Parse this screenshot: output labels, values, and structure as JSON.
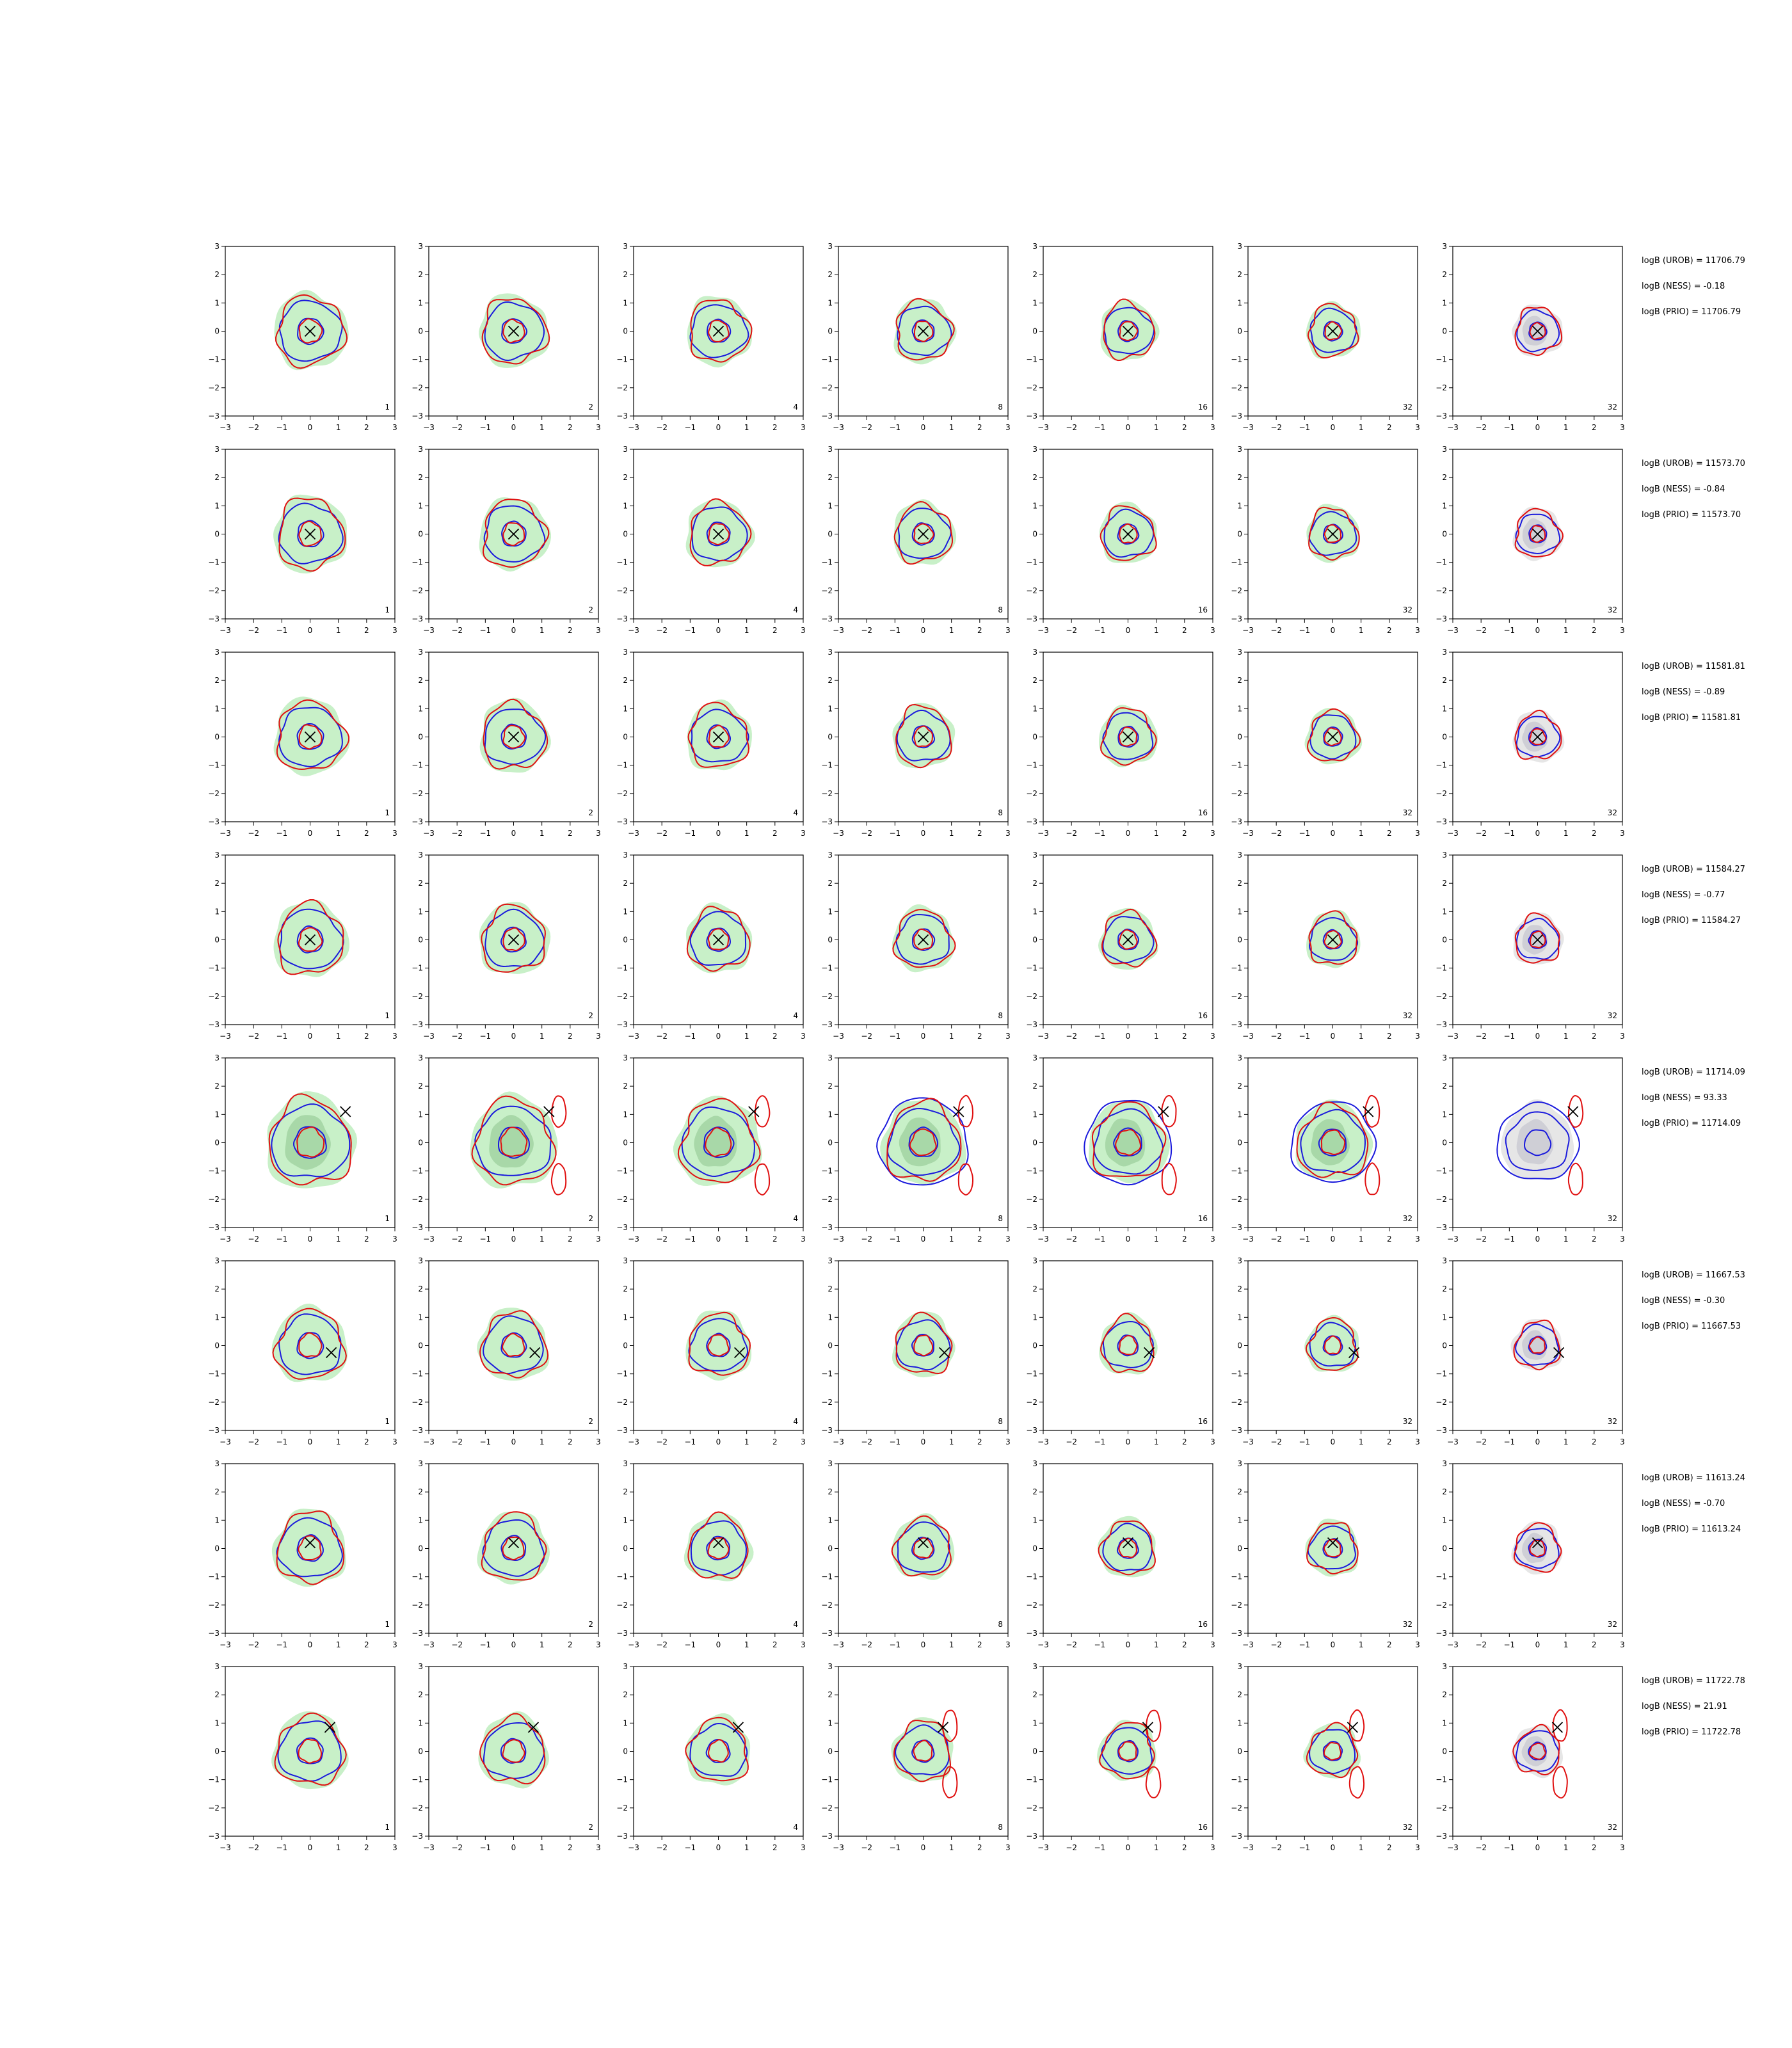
{
  "chart_data": {
    "type": "contour-grid",
    "rows": 8,
    "columns": 7,
    "xlim": [
      -3,
      3
    ],
    "ylim": [
      -3,
      3
    ],
    "xticks": [
      -3,
      -2,
      -1,
      0,
      1,
      2,
      3
    ],
    "yticks": [
      -3,
      -2,
      -1,
      0,
      1,
      2,
      3
    ],
    "column_labels": [
      "1",
      "2",
      "4",
      "8",
      "16",
      "32",
      "32"
    ],
    "colors": {
      "fill": "#c8f0c8",
      "fill_inner": "#a8d8a8",
      "last_fill": "#e6e6e6",
      "last_fill_inner": "#cfcfd6",
      "blue": "#1a1adc",
      "red": "#e01010",
      "marker": "#000000"
    },
    "rows_data": [
      {
        "marker": [
          0.0,
          0.0
        ],
        "stats": [
          "logB (UROB) = 11706.79",
          "logB (NESS) = -0.18",
          "logB (PRIO) = 11706.79"
        ]
      },
      {
        "marker": [
          0.0,
          0.0
        ],
        "stats": [
          "logB (UROB) = 11573.70",
          "logB (NESS) = -0.84",
          "logB (PRIO) = 11573.70"
        ]
      },
      {
        "marker": [
          0.0,
          0.0
        ],
        "stats": [
          "logB (UROB) = 11581.81",
          "logB (NESS) = -0.89",
          "logB (PRIO) = 11581.81"
        ]
      },
      {
        "marker": [
          0.0,
          0.0
        ],
        "stats": [
          "logB (UROB) = 11584.27",
          "logB (NESS) = -0.77",
          "logB (PRIO) = 11584.27"
        ]
      },
      {
        "marker": [
          1.25,
          1.1
        ],
        "stats": [
          "logB (UROB) = 11714.09",
          "logB (NESS) = 93.33",
          "logB (PRIO) = 11714.09"
        ]
      },
      {
        "marker": [
          0.75,
          -0.25
        ],
        "stats": [
          "logB (UROB) = 11667.53",
          "logB (NESS) = -0.30",
          "logB (PRIO) = 11667.53"
        ]
      },
      {
        "marker": [
          0.0,
          0.2
        ],
        "stats": [
          "logB (UROB) = 11613.24",
          "logB (NESS) = -0.70",
          "logB (PRIO) = 11613.24"
        ]
      },
      {
        "marker": [
          0.7,
          0.85
        ],
        "stats": [
          "logB (UROB) = 11722.78",
          "logB (NESS) = 21.91",
          "logB (PRIO) = 11722.78"
        ]
      }
    ]
  }
}
